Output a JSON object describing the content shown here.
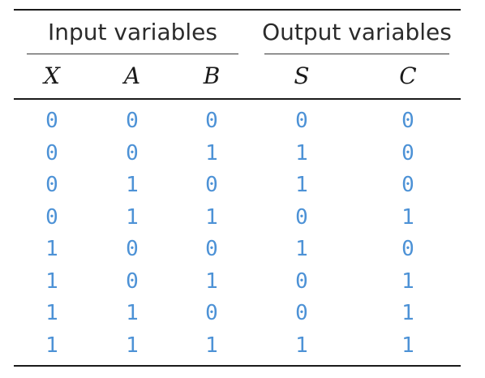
{
  "table": {
    "groups": {
      "input": "Input variables",
      "output": "Output variables"
    },
    "columns": [
      "X",
      "A",
      "B",
      "S",
      "C"
    ],
    "rows": [
      [
        "0",
        "0",
        "0",
        "0",
        "0"
      ],
      [
        "0",
        "0",
        "1",
        "1",
        "0"
      ],
      [
        "0",
        "1",
        "0",
        "1",
        "0"
      ],
      [
        "0",
        "1",
        "1",
        "0",
        "1"
      ],
      [
        "1",
        "0",
        "0",
        "1",
        "0"
      ],
      [
        "1",
        "0",
        "1",
        "0",
        "1"
      ],
      [
        "1",
        "1",
        "0",
        "0",
        "1"
      ],
      [
        "1",
        "1",
        "1",
        "1",
        "1"
      ]
    ],
    "value_color": "#4d92d6",
    "rule_color": "#1a1a1a"
  }
}
